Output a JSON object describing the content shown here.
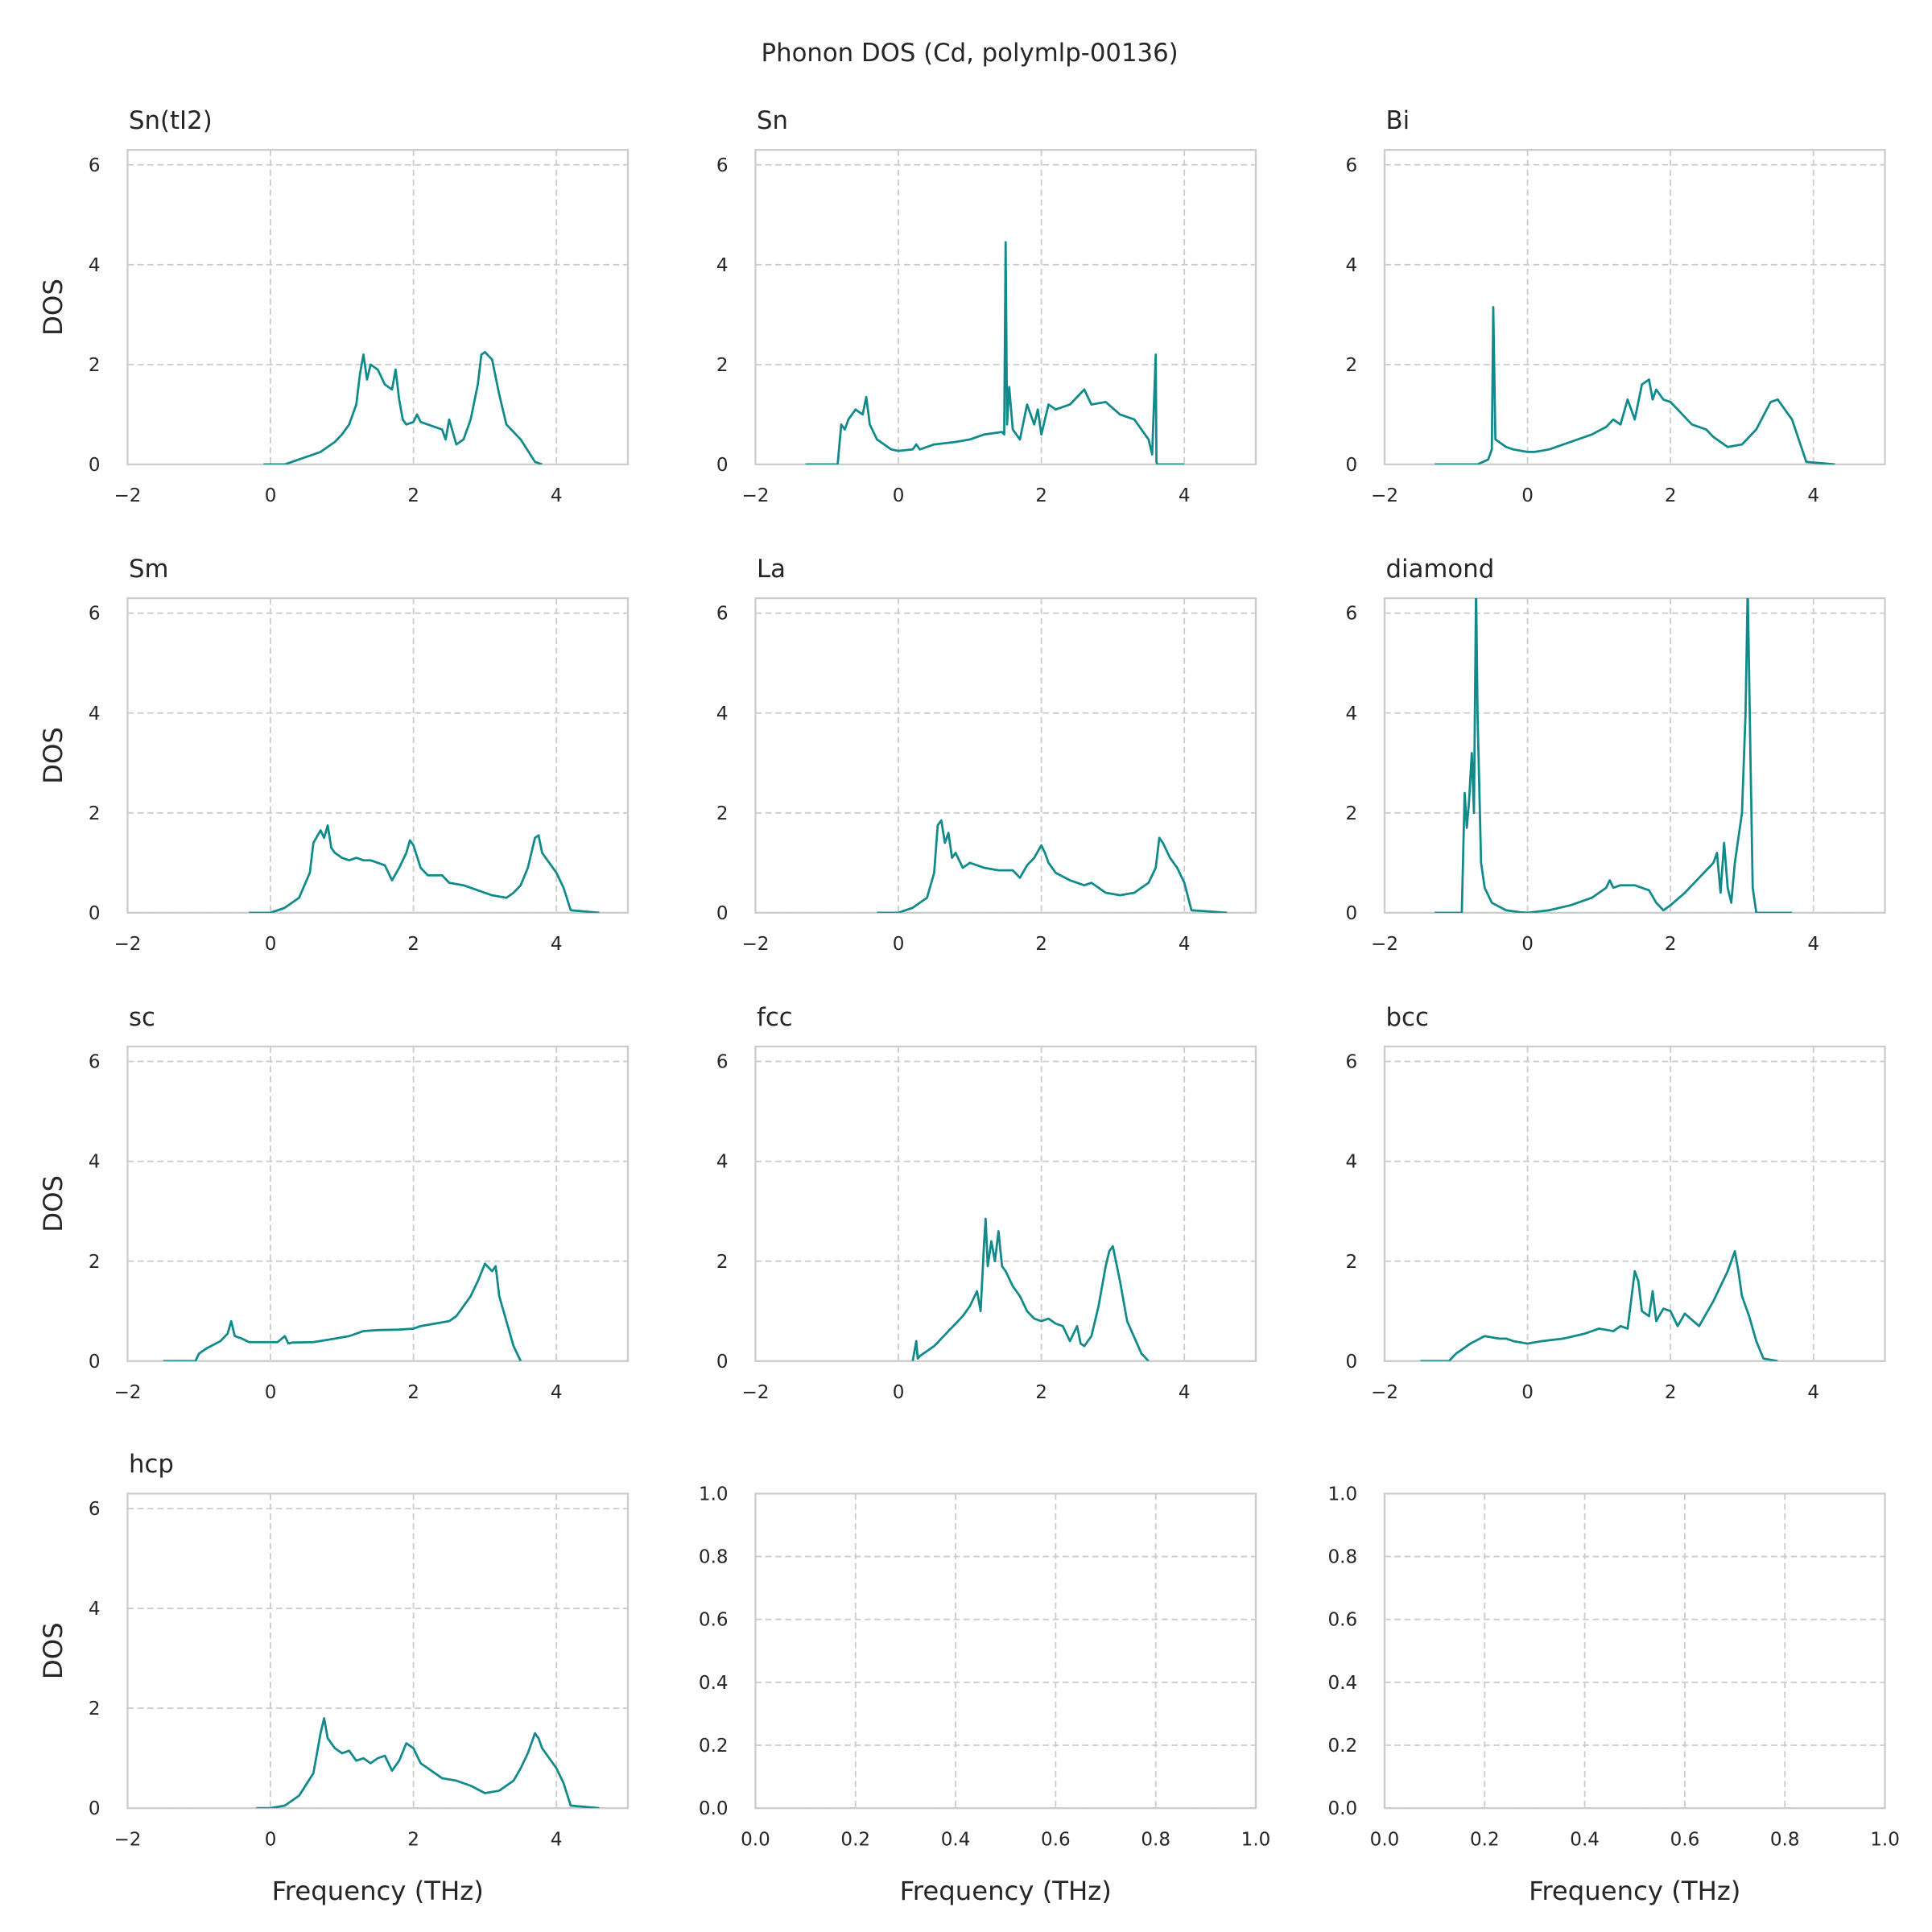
{
  "title": "Phonon DOS (Cd, polymlp-00136)",
  "chart_data": [
    {
      "type": "line",
      "title": "Sn(tI2)",
      "ylabel": "DOS",
      "color": "#108a8a",
      "grid": true,
      "xlim": [
        -2,
        5
      ],
      "ylim": [
        0,
        6.3
      ],
      "xticks": [
        {
          "value": -2,
          "label": "−2"
        },
        0,
        2,
        4
      ],
      "yticks": [
        0,
        2,
        4,
        6
      ],
      "x": [
        -0.1,
        0.2,
        0.3,
        0.5,
        0.7,
        0.9,
        1.0,
        1.1,
        1.2,
        1.25,
        1.3,
        1.35,
        1.4,
        1.5,
        1.6,
        1.7,
        1.75,
        1.8,
        1.85,
        1.9,
        2.0,
        2.05,
        2.1,
        2.2,
        2.3,
        2.4,
        2.45,
        2.5,
        2.6,
        2.7,
        2.8,
        2.9,
        2.95,
        3.0,
        3.1,
        3.2,
        3.3,
        3.5,
        3.7,
        3.8
      ],
      "values": [
        0,
        0,
        0.05,
        0.15,
        0.25,
        0.45,
        0.6,
        0.8,
        1.2,
        1.8,
        2.2,
        1.7,
        2.0,
        1.9,
        1.6,
        1.5,
        1.9,
        1.3,
        0.9,
        0.8,
        0.85,
        1.0,
        0.85,
        0.8,
        0.75,
        0.7,
        0.5,
        0.9,
        0.4,
        0.5,
        0.9,
        1.6,
        2.2,
        2.25,
        2.1,
        1.4,
        0.8,
        0.5,
        0.05,
        0
      ]
    },
    {
      "type": "line",
      "title": "Sn",
      "color": "#108a8a",
      "grid": true,
      "xlim": [
        -2,
        5
      ],
      "ylim": [
        0,
        6.3
      ],
      "xticks": [
        {
          "value": -2,
          "label": "−2"
        },
        0,
        2,
        4
      ],
      "yticks": [
        0,
        2,
        4,
        6
      ],
      "x": [
        -1.3,
        -0.85,
        -0.8,
        -0.75,
        -0.7,
        -0.6,
        -0.5,
        -0.45,
        -0.4,
        -0.3,
        -0.1,
        0,
        0.2,
        0.25,
        0.3,
        0.5,
        0.8,
        1.0,
        1.2,
        1.45,
        1.48,
        1.5,
        1.52,
        1.55,
        1.6,
        1.7,
        1.8,
        1.9,
        1.95,
        2.0,
        2.1,
        2.2,
        2.4,
        2.6,
        2.7,
        2.9,
        3.1,
        3.3,
        3.5,
        3.55,
        3.6,
        3.61,
        3.62,
        4.0
      ],
      "values": [
        0,
        0,
        0.8,
        0.7,
        0.9,
        1.1,
        1.0,
        1.35,
        0.8,
        0.5,
        0.3,
        0.27,
        0.3,
        0.4,
        0.3,
        0.4,
        0.45,
        0.5,
        0.6,
        0.65,
        0.6,
        4.45,
        0.8,
        1.55,
        0.7,
        0.5,
        1.2,
        0.8,
        1.1,
        0.6,
        1.2,
        1.1,
        1.2,
        1.5,
        1.2,
        1.25,
        1.0,
        0.9,
        0.5,
        0.2,
        2.2,
        0.05,
        0,
        0
      ]
    },
    {
      "type": "line",
      "title": "Bi",
      "color": "#108a8a",
      "grid": true,
      "xlim": [
        -2,
        5
      ],
      "ylim": [
        0,
        6.3
      ],
      "xticks": [
        {
          "value": -2,
          "label": "−2"
        },
        0,
        2,
        4
      ],
      "yticks": [
        0,
        2,
        4,
        6
      ],
      "x": [
        -1.3,
        -0.7,
        -0.55,
        -0.5,
        -0.48,
        -0.45,
        -0.4,
        -0.3,
        -0.2,
        0,
        0.1,
        0.3,
        0.6,
        0.9,
        1.1,
        1.2,
        1.3,
        1.4,
        1.5,
        1.6,
        1.7,
        1.75,
        1.8,
        1.9,
        2.0,
        2.1,
        2.3,
        2.5,
        2.6,
        2.8,
        3.0,
        3.2,
        3.4,
        3.5,
        3.6,
        3.7,
        3.9,
        4.3
      ],
      "values": [
        0,
        0,
        0.1,
        0.3,
        3.15,
        0.5,
        0.45,
        0.35,
        0.3,
        0.25,
        0.25,
        0.3,
        0.45,
        0.6,
        0.75,
        0.9,
        0.8,
        1.3,
        0.9,
        1.6,
        1.7,
        1.3,
        1.5,
        1.3,
        1.25,
        1.1,
        0.8,
        0.7,
        0.55,
        0.35,
        0.4,
        0.7,
        1.25,
        1.3,
        1.1,
        0.9,
        0.05,
        0
      ]
    },
    {
      "type": "line",
      "title": "Sm",
      "ylabel": "DOS",
      "color": "#108a8a",
      "grid": true,
      "xlim": [
        -2,
        5
      ],
      "ylim": [
        0,
        6.3
      ],
      "xticks": [
        {
          "value": -2,
          "label": "−2"
        },
        0,
        2,
        4
      ],
      "yticks": [
        0,
        2,
        4,
        6
      ],
      "x": [
        -0.3,
        0,
        0.2,
        0.4,
        0.55,
        0.6,
        0.7,
        0.75,
        0.8,
        0.85,
        0.9,
        1.0,
        1.1,
        1.2,
        1.3,
        1.4,
        1.5,
        1.6,
        1.7,
        1.8,
        1.9,
        1.95,
        2.0,
        2.1,
        2.2,
        2.4,
        2.5,
        2.7,
        2.9,
        3.1,
        3.3,
        3.4,
        3.5,
        3.6,
        3.7,
        3.75,
        3.8,
        3.9,
        4.0,
        4.1,
        4.2,
        4.6
      ],
      "values": [
        0,
        0,
        0.1,
        0.3,
        0.8,
        1.4,
        1.65,
        1.5,
        1.75,
        1.3,
        1.2,
        1.1,
        1.05,
        1.1,
        1.05,
        1.05,
        1.0,
        0.95,
        0.65,
        0.9,
        1.2,
        1.45,
        1.35,
        0.9,
        0.75,
        0.75,
        0.6,
        0.55,
        0.45,
        0.35,
        0.3,
        0.4,
        0.55,
        0.9,
        1.5,
        1.55,
        1.2,
        1.0,
        0.8,
        0.5,
        0.05,
        0
      ]
    },
    {
      "type": "line",
      "title": "La",
      "color": "#108a8a",
      "grid": true,
      "xlim": [
        -2,
        5
      ],
      "ylim": [
        0,
        6.3
      ],
      "xticks": [
        {
          "value": -2,
          "label": "−2"
        },
        0,
        2,
        4
      ],
      "yticks": [
        0,
        2,
        4,
        6
      ],
      "x": [
        -0.3,
        0,
        0.2,
        0.4,
        0.5,
        0.55,
        0.6,
        0.65,
        0.7,
        0.75,
        0.8,
        0.9,
        1.0,
        1.2,
        1.4,
        1.6,
        1.7,
        1.8,
        1.9,
        2.0,
        2.05,
        2.1,
        2.2,
        2.4,
        2.6,
        2.7,
        2.9,
        3.1,
        3.3,
        3.5,
        3.6,
        3.65,
        3.7,
        3.8,
        3.9,
        4.0,
        4.1,
        4.6
      ],
      "values": [
        0,
        0,
        0.1,
        0.3,
        0.8,
        1.75,
        1.85,
        1.4,
        1.6,
        1.1,
        1.2,
        0.9,
        1.0,
        0.9,
        0.85,
        0.85,
        0.7,
        0.95,
        1.1,
        1.35,
        1.2,
        1.0,
        0.8,
        0.65,
        0.55,
        0.6,
        0.4,
        0.35,
        0.4,
        0.6,
        0.9,
        1.5,
        1.4,
        1.1,
        0.9,
        0.6,
        0.05,
        0
      ]
    },
    {
      "type": "line",
      "title": "diamond",
      "color": "#108a8a",
      "grid": true,
      "xlim": [
        -2,
        5
      ],
      "ylim": [
        0,
        6.3
      ],
      "xticks": [
        {
          "value": -2,
          "label": "−2"
        },
        0,
        2,
        4
      ],
      "yticks": [
        0,
        2,
        4,
        6
      ],
      "x": [
        -1.3,
        -0.92,
        -0.88,
        -0.85,
        -0.82,
        -0.78,
        -0.75,
        -0.72,
        -0.7,
        -0.65,
        -0.6,
        -0.5,
        -0.3,
        -0.1,
        0,
        0.3,
        0.6,
        0.9,
        1.0,
        1.1,
        1.15,
        1.2,
        1.3,
        1.5,
        1.7,
        1.8,
        1.9,
        2.0,
        2.2,
        2.4,
        2.6,
        2.65,
        2.7,
        2.75,
        2.8,
        2.85,
        2.9,
        3.0,
        3.05,
        3.08,
        3.12,
        3.15,
        3.2,
        3.3,
        3.7
      ],
      "values": [
        0,
        0,
        2.4,
        1.7,
        2.2,
        3.2,
        2.0,
        6.5,
        4.0,
        1.0,
        0.5,
        0.2,
        0.05,
        0.01,
        0,
        0.05,
        0.15,
        0.3,
        0.4,
        0.5,
        0.65,
        0.5,
        0.55,
        0.55,
        0.45,
        0.2,
        0.05,
        0.15,
        0.4,
        0.7,
        1.0,
        1.2,
        0.4,
        1.4,
        0.5,
        0.2,
        1.0,
        2.0,
        4.0,
        6.5,
        3.0,
        0.5,
        0,
        0,
        0
      ]
    },
    {
      "type": "line",
      "title": "sc",
      "ylabel": "DOS",
      "color": "#108a8a",
      "grid": true,
      "xlim": [
        -2,
        5
      ],
      "ylim": [
        0,
        6.3
      ],
      "xticks": [
        {
          "value": -2,
          "label": "−2"
        },
        0,
        2,
        4
      ],
      "yticks": [
        0,
        2,
        4,
        6
      ],
      "x": [
        -1.5,
        -1.05,
        -1.0,
        -0.9,
        -0.7,
        -0.6,
        -0.55,
        -0.5,
        -0.4,
        -0.3,
        -0.1,
        0.1,
        0.2,
        0.25,
        0.3,
        0.6,
        0.9,
        1.1,
        1.3,
        1.5,
        1.8,
        2.0,
        2.1,
        2.3,
        2.5,
        2.6,
        2.7,
        2.8,
        2.9,
        3.0,
        3.1,
        3.15,
        3.2,
        3.3,
        3.4,
        3.5
      ],
      "values": [
        0,
        0,
        0.15,
        0.25,
        0.4,
        0.55,
        0.8,
        0.5,
        0.45,
        0.38,
        0.38,
        0.38,
        0.5,
        0.35,
        0.37,
        0.38,
        0.45,
        0.5,
        0.6,
        0.62,
        0.63,
        0.65,
        0.7,
        0.75,
        0.8,
        0.9,
        1.1,
        1.3,
        1.6,
        1.95,
        1.8,
        1.9,
        1.3,
        0.8,
        0.3,
        0
      ]
    },
    {
      "type": "line",
      "title": "fcc",
      "color": "#108a8a",
      "grid": true,
      "xlim": [
        -2,
        5
      ],
      "ylim": [
        0,
        6.3
      ],
      "xticks": [
        {
          "value": -2,
          "label": "−2"
        },
        0,
        2,
        4
      ],
      "yticks": [
        0,
        2,
        4,
        6
      ],
      "x": [
        0.2,
        0.25,
        0.27,
        0.3,
        0.5,
        0.7,
        0.9,
        1.0,
        1.1,
        1.15,
        1.2,
        1.22,
        1.25,
        1.3,
        1.35,
        1.4,
        1.45,
        1.5,
        1.6,
        1.7,
        1.8,
        1.9,
        2.0,
        2.1,
        2.2,
        2.3,
        2.4,
        2.5,
        2.55,
        2.6,
        2.7,
        2.8,
        2.9,
        2.95,
        3.0,
        3.1,
        3.2,
        3.4,
        3.5
      ],
      "values": [
        0,
        0.4,
        0.05,
        0.1,
        0.3,
        0.6,
        0.9,
        1.1,
        1.4,
        1.0,
        2.4,
        2.85,
        1.9,
        2.4,
        2.0,
        2.6,
        1.9,
        1.8,
        1.5,
        1.3,
        1.0,
        0.85,
        0.8,
        0.85,
        0.75,
        0.7,
        0.4,
        0.7,
        0.35,
        0.3,
        0.5,
        1.1,
        1.9,
        2.2,
        2.3,
        1.6,
        0.8,
        0.15,
        0
      ]
    },
    {
      "type": "line",
      "title": "bcc",
      "color": "#108a8a",
      "grid": true,
      "xlim": [
        -2,
        5
      ],
      "ylim": [
        0,
        6.3
      ],
      "xticks": [
        {
          "value": -2,
          "label": "−2"
        },
        0,
        2,
        4
      ],
      "yticks": [
        0,
        2,
        4,
        6
      ],
      "x": [
        -1.5,
        -1.1,
        -1.0,
        -0.8,
        -0.6,
        -0.4,
        -0.3,
        -0.2,
        0,
        0.2,
        0.5,
        0.8,
        1.0,
        1.2,
        1.3,
        1.4,
        1.5,
        1.55,
        1.6,
        1.7,
        1.75,
        1.8,
        1.9,
        2.0,
        2.1,
        2.2,
        2.4,
        2.6,
        2.8,
        2.9,
        2.95,
        3.0,
        3.1,
        3.2,
        3.3,
        3.5
      ],
      "values": [
        0,
        0,
        0.15,
        0.35,
        0.5,
        0.45,
        0.45,
        0.4,
        0.35,
        0.4,
        0.45,
        0.55,
        0.65,
        0.6,
        0.7,
        0.65,
        1.8,
        1.6,
        1.0,
        0.9,
        1.4,
        0.8,
        1.05,
        1.0,
        0.7,
        0.95,
        0.7,
        1.2,
        1.8,
        2.2,
        1.8,
        1.3,
        0.9,
        0.4,
        0.05,
        0
      ]
    },
    {
      "type": "line",
      "title": "hcp",
      "ylabel": "DOS",
      "xlabel": "Frequency (THz)",
      "color": "#108a8a",
      "grid": true,
      "xlim": [
        -2,
        5
      ],
      "ylim": [
        0,
        6.3
      ],
      "xticks": [
        {
          "value": -2,
          "label": "−2"
        },
        0,
        2,
        4
      ],
      "yticks": [
        0,
        2,
        4,
        6
      ],
      "x": [
        -0.2,
        0,
        0.2,
        0.4,
        0.6,
        0.7,
        0.75,
        0.8,
        0.9,
        1.0,
        1.1,
        1.2,
        1.3,
        1.4,
        1.5,
        1.6,
        1.7,
        1.8,
        1.9,
        1.95,
        2.0,
        2.1,
        2.2,
        2.4,
        2.6,
        2.8,
        3.0,
        3.2,
        3.4,
        3.5,
        3.6,
        3.7,
        3.75,
        3.8,
        3.9,
        4.0,
        4.1,
        4.2,
        4.6
      ],
      "values": [
        0,
        0,
        0.05,
        0.25,
        0.7,
        1.5,
        1.8,
        1.4,
        1.2,
        1.1,
        1.15,
        0.95,
        1.0,
        0.9,
        1.0,
        1.05,
        0.75,
        0.95,
        1.3,
        1.25,
        1.2,
        0.9,
        0.8,
        0.6,
        0.55,
        0.45,
        0.3,
        0.35,
        0.55,
        0.8,
        1.1,
        1.5,
        1.4,
        1.2,
        1.0,
        0.8,
        0.5,
        0.05,
        0
      ]
    },
    {
      "type": "empty",
      "xlabel": "Frequency (THz)",
      "grid": true,
      "xlim": [
        0,
        1
      ],
      "ylim": [
        0,
        1
      ],
      "xticks": [
        {
          "value": 0,
          "label": "0.0"
        },
        0.2,
        0.4,
        0.6,
        0.8,
        {
          "value": 1,
          "label": "1.0"
        }
      ],
      "yticks": [
        {
          "value": 0,
          "label": "0.0"
        },
        0.2,
        0.4,
        0.6,
        0.8,
        {
          "value": 1,
          "label": "1.0"
        }
      ]
    },
    {
      "type": "empty",
      "xlabel": "Frequency (THz)",
      "grid": true,
      "xlim": [
        0,
        1
      ],
      "ylim": [
        0,
        1
      ],
      "xticks": [
        {
          "value": 0,
          "label": "0.0"
        },
        0.2,
        0.4,
        0.6,
        0.8,
        {
          "value": 1,
          "label": "1.0"
        }
      ],
      "yticks": [
        {
          "value": 0,
          "label": "0.0"
        },
        0.2,
        0.4,
        0.6,
        0.8,
        {
          "value": 1,
          "label": "1.0"
        }
      ]
    }
  ]
}
